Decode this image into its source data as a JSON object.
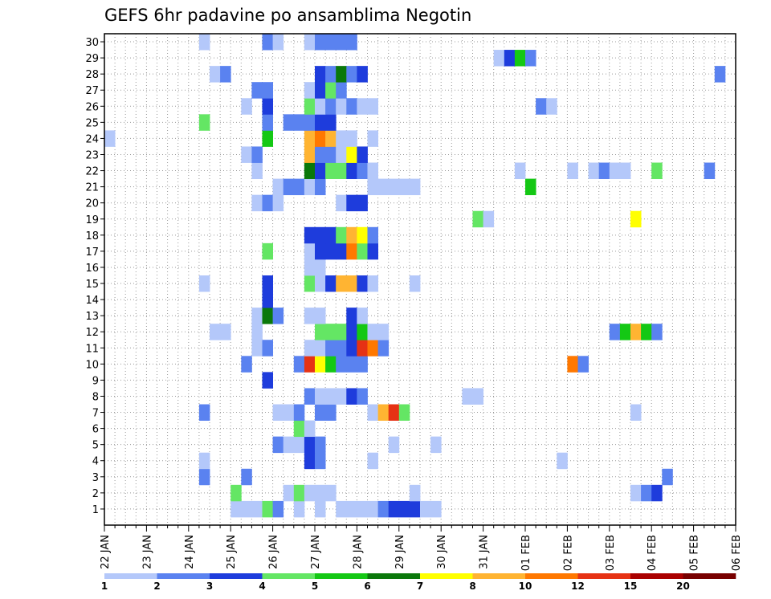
{
  "chart_data": {
    "type": "heatmap",
    "title": "GEFS 6hr padavine po ansamblima Negotin",
    "xlabel": "",
    "ylabel": "",
    "x_tick_labels": [
      "22 JAN",
      "23 JAN",
      "24 JAN",
      "25 JAN",
      "26 JAN",
      "27 JAN",
      "28 JAN",
      "29 JAN",
      "30 JAN",
      "31 JAN",
      "01 FEB",
      "02 FEB",
      "03 FEB",
      "04 FEB",
      "05 FEB",
      "06 FEB"
    ],
    "x_range_hours": [
      0,
      360
    ],
    "y_tick_labels": [
      "1",
      "2",
      "3",
      "4",
      "5",
      "6",
      "7",
      "8",
      "9",
      "10",
      "11",
      "12",
      "13",
      "14",
      "15",
      "16",
      "17",
      "18",
      "19",
      "20",
      "21",
      "22",
      "23",
      "24",
      "25",
      "26",
      "27",
      "28",
      "29",
      "30"
    ],
    "grid": true,
    "legend_placement": "bottom",
    "legend": {
      "thresholds": [
        "1",
        "2",
        "3",
        "4",
        "5",
        "6",
        "7",
        "8",
        "10",
        "12",
        "15",
        "20"
      ],
      "colors": [
        "#b4c8fa",
        "#5a82f0",
        "#1e3cdc",
        "#64e664",
        "#14c814",
        "#0a780a",
        "#ffff00",
        "#ffb432",
        "#ff7800",
        "#e63214",
        "#aa0000",
        "#780000"
      ]
    },
    "cell_hours": 6,
    "values_unit": "precipitation class index (0 = 1-2, 1 = 2-3, 2 = 3-4, 3 = 4-5, 4 = 5-6, 5 = 6-7, 6 = 7-8, 7 = 8-10, 8 = 10-12, 9 = 12-15, 10 = 15-20, 11 = >20)",
    "series": [
      {
        "member": 1,
        "cells": [
          [
            72,
            0
          ],
          [
            78,
            0
          ],
          [
            84,
            0
          ],
          [
            90,
            3
          ],
          [
            96,
            1
          ],
          [
            108,
            0
          ],
          [
            120,
            0
          ],
          [
            132,
            0
          ],
          [
            138,
            0
          ],
          [
            144,
            0
          ],
          [
            150,
            0
          ],
          [
            156,
            1
          ],
          [
            162,
            2
          ],
          [
            168,
            2
          ],
          [
            174,
            2
          ],
          [
            180,
            0
          ],
          [
            186,
            0
          ]
        ]
      },
      {
        "member": 2,
        "cells": [
          [
            72,
            3
          ],
          [
            102,
            0
          ],
          [
            108,
            3
          ],
          [
            114,
            0
          ],
          [
            120,
            0
          ],
          [
            126,
            0
          ],
          [
            174,
            0
          ],
          [
            300,
            0
          ],
          [
            306,
            1
          ],
          [
            312,
            2
          ]
        ]
      },
      {
        "member": 3,
        "cells": [
          [
            54,
            1
          ],
          [
            78,
            1
          ],
          [
            318,
            1
          ]
        ]
      },
      {
        "member": 4,
        "cells": [
          [
            54,
            0
          ],
          [
            114,
            2
          ],
          [
            120,
            1
          ],
          [
            150,
            0
          ],
          [
            258,
            0
          ]
        ]
      },
      {
        "member": 5,
        "cells": [
          [
            96,
            1
          ],
          [
            102,
            0
          ],
          [
            108,
            0
          ],
          [
            114,
            2
          ],
          [
            120,
            1
          ],
          [
            162,
            0
          ],
          [
            186,
            0
          ]
        ]
      },
      {
        "member": 6,
        "cells": [
          [
            108,
            3
          ],
          [
            114,
            0
          ]
        ]
      },
      {
        "member": 7,
        "cells": [
          [
            54,
            1
          ],
          [
            96,
            0
          ],
          [
            102,
            0
          ],
          [
            108,
            1
          ],
          [
            120,
            1
          ],
          [
            126,
            1
          ],
          [
            150,
            0
          ],
          [
            156,
            7
          ],
          [
            162,
            9
          ],
          [
            168,
            3
          ],
          [
            300,
            0
          ]
        ]
      },
      {
        "member": 8,
        "cells": [
          [
            114,
            1
          ],
          [
            120,
            0
          ],
          [
            126,
            0
          ],
          [
            132,
            0
          ],
          [
            138,
            2
          ],
          [
            144,
            1
          ],
          [
            204,
            0
          ],
          [
            210,
            0
          ]
        ]
      },
      {
        "member": 9,
        "cells": [
          [
            90,
            2
          ]
        ]
      },
      {
        "member": 10,
        "cells": [
          [
            78,
            1
          ],
          [
            108,
            1
          ],
          [
            114,
            9
          ],
          [
            120,
            6
          ],
          [
            126,
            4
          ],
          [
            132,
            1
          ],
          [
            138,
            1
          ],
          [
            144,
            1
          ],
          [
            264,
            8
          ],
          [
            270,
            1
          ]
        ]
      },
      {
        "member": 11,
        "cells": [
          [
            84,
            0
          ],
          [
            90,
            1
          ],
          [
            114,
            0
          ],
          [
            120,
            0
          ],
          [
            126,
            1
          ],
          [
            132,
            1
          ],
          [
            138,
            2
          ],
          [
            144,
            9
          ],
          [
            150,
            8
          ],
          [
            156,
            1
          ]
        ]
      },
      {
        "member": 12,
        "cells": [
          [
            60,
            0
          ],
          [
            66,
            0
          ],
          [
            84,
            0
          ],
          [
            120,
            3
          ],
          [
            126,
            3
          ],
          [
            132,
            3
          ],
          [
            138,
            2
          ],
          [
            144,
            4
          ],
          [
            150,
            0
          ],
          [
            156,
            0
          ],
          [
            288,
            1
          ],
          [
            294,
            4
          ],
          [
            300,
            7
          ],
          [
            306,
            4
          ],
          [
            312,
            1
          ]
        ]
      },
      {
        "member": 13,
        "cells": [
          [
            84,
            0
          ],
          [
            90,
            5
          ],
          [
            96,
            1
          ],
          [
            114,
            0
          ],
          [
            120,
            0
          ],
          [
            138,
            2
          ],
          [
            144,
            0
          ]
        ]
      },
      {
        "member": 14,
        "cells": [
          [
            90,
            2
          ]
        ]
      },
      {
        "member": 15,
        "cells": [
          [
            54,
            0
          ],
          [
            90,
            2
          ],
          [
            114,
            3
          ],
          [
            120,
            0
          ],
          [
            126,
            2
          ],
          [
            132,
            7
          ],
          [
            138,
            7
          ],
          [
            144,
            2
          ],
          [
            150,
            0
          ],
          [
            174,
            0
          ]
        ]
      },
      {
        "member": 16,
        "cells": [
          [
            114,
            0
          ],
          [
            120,
            0
          ]
        ]
      },
      {
        "member": 17,
        "cells": [
          [
            90,
            3
          ],
          [
            114,
            0
          ],
          [
            120,
            2
          ],
          [
            126,
            2
          ],
          [
            132,
            2
          ],
          [
            138,
            8
          ],
          [
            144,
            3
          ],
          [
            150,
            2
          ]
        ]
      },
      {
        "member": 18,
        "cells": [
          [
            114,
            2
          ],
          [
            120,
            2
          ],
          [
            126,
            2
          ],
          [
            132,
            3
          ],
          [
            138,
            7
          ],
          [
            144,
            6
          ],
          [
            150,
            1
          ]
        ]
      },
      {
        "member": 19,
        "cells": [
          [
            210,
            3
          ],
          [
            216,
            0
          ],
          [
            300,
            6
          ]
        ]
      },
      {
        "member": 20,
        "cells": [
          [
            84,
            0
          ],
          [
            90,
            1
          ],
          [
            96,
            0
          ],
          [
            132,
            0
          ],
          [
            138,
            2
          ],
          [
            144,
            2
          ]
        ]
      },
      {
        "member": 21,
        "cells": [
          [
            96,
            0
          ],
          [
            102,
            1
          ],
          [
            108,
            1
          ],
          [
            114,
            0
          ],
          [
            120,
            1
          ],
          [
            150,
            0
          ],
          [
            156,
            0
          ],
          [
            162,
            0
          ],
          [
            168,
            0
          ],
          [
            174,
            0
          ],
          [
            240,
            4
          ]
        ]
      },
      {
        "member": 22,
        "cells": [
          [
            84,
            0
          ],
          [
            114,
            5
          ],
          [
            120,
            2
          ],
          [
            126,
            3
          ],
          [
            132,
            3
          ],
          [
            138,
            2
          ],
          [
            144,
            1
          ],
          [
            150,
            0
          ],
          [
            234,
            0
          ],
          [
            264,
            0
          ],
          [
            276,
            0
          ],
          [
            282,
            1
          ],
          [
            288,
            0
          ],
          [
            294,
            0
          ],
          [
            312,
            3
          ],
          [
            342,
            1
          ]
        ]
      },
      {
        "member": 23,
        "cells": [
          [
            78,
            0
          ],
          [
            84,
            1
          ],
          [
            114,
            7
          ],
          [
            120,
            1
          ],
          [
            126,
            1
          ],
          [
            132,
            0
          ],
          [
            138,
            6
          ],
          [
            144,
            2
          ]
        ]
      },
      {
        "member": 24,
        "cells": [
          [
            0,
            0
          ],
          [
            90,
            4
          ],
          [
            114,
            7
          ],
          [
            120,
            8
          ],
          [
            126,
            7
          ],
          [
            132,
            0
          ],
          [
            138,
            0
          ],
          [
            150,
            0
          ]
        ]
      },
      {
        "member": 25,
        "cells": [
          [
            54,
            3
          ],
          [
            90,
            1
          ],
          [
            102,
            1
          ],
          [
            108,
            1
          ],
          [
            114,
            1
          ],
          [
            120,
            2
          ],
          [
            126,
            2
          ]
        ]
      },
      {
        "member": 26,
        "cells": [
          [
            78,
            0
          ],
          [
            90,
            2
          ],
          [
            114,
            3
          ],
          [
            120,
            0
          ],
          [
            126,
            1
          ],
          [
            132,
            0
          ],
          [
            138,
            1
          ],
          [
            144,
            0
          ],
          [
            150,
            0
          ],
          [
            246,
            1
          ],
          [
            252,
            0
          ]
        ]
      },
      {
        "member": 27,
        "cells": [
          [
            84,
            1
          ],
          [
            90,
            1
          ],
          [
            114,
            0
          ],
          [
            120,
            2
          ],
          [
            126,
            3
          ],
          [
            132,
            1
          ]
        ]
      },
      {
        "member": 28,
        "cells": [
          [
            60,
            0
          ],
          [
            66,
            1
          ],
          [
            120,
            2
          ],
          [
            126,
            1
          ],
          [
            132,
            5
          ],
          [
            138,
            1
          ],
          [
            144,
            2
          ],
          [
            348,
            1
          ]
        ]
      },
      {
        "member": 29,
        "cells": [
          [
            222,
            0
          ],
          [
            228,
            2
          ],
          [
            234,
            4
          ],
          [
            240,
            1
          ]
        ]
      },
      {
        "member": 30,
        "cells": [
          [
            54,
            0
          ],
          [
            90,
            1
          ],
          [
            96,
            0
          ],
          [
            114,
            0
          ],
          [
            120,
            1
          ],
          [
            126,
            1
          ],
          [
            132,
            1
          ],
          [
            138,
            1
          ]
        ]
      }
    ]
  }
}
